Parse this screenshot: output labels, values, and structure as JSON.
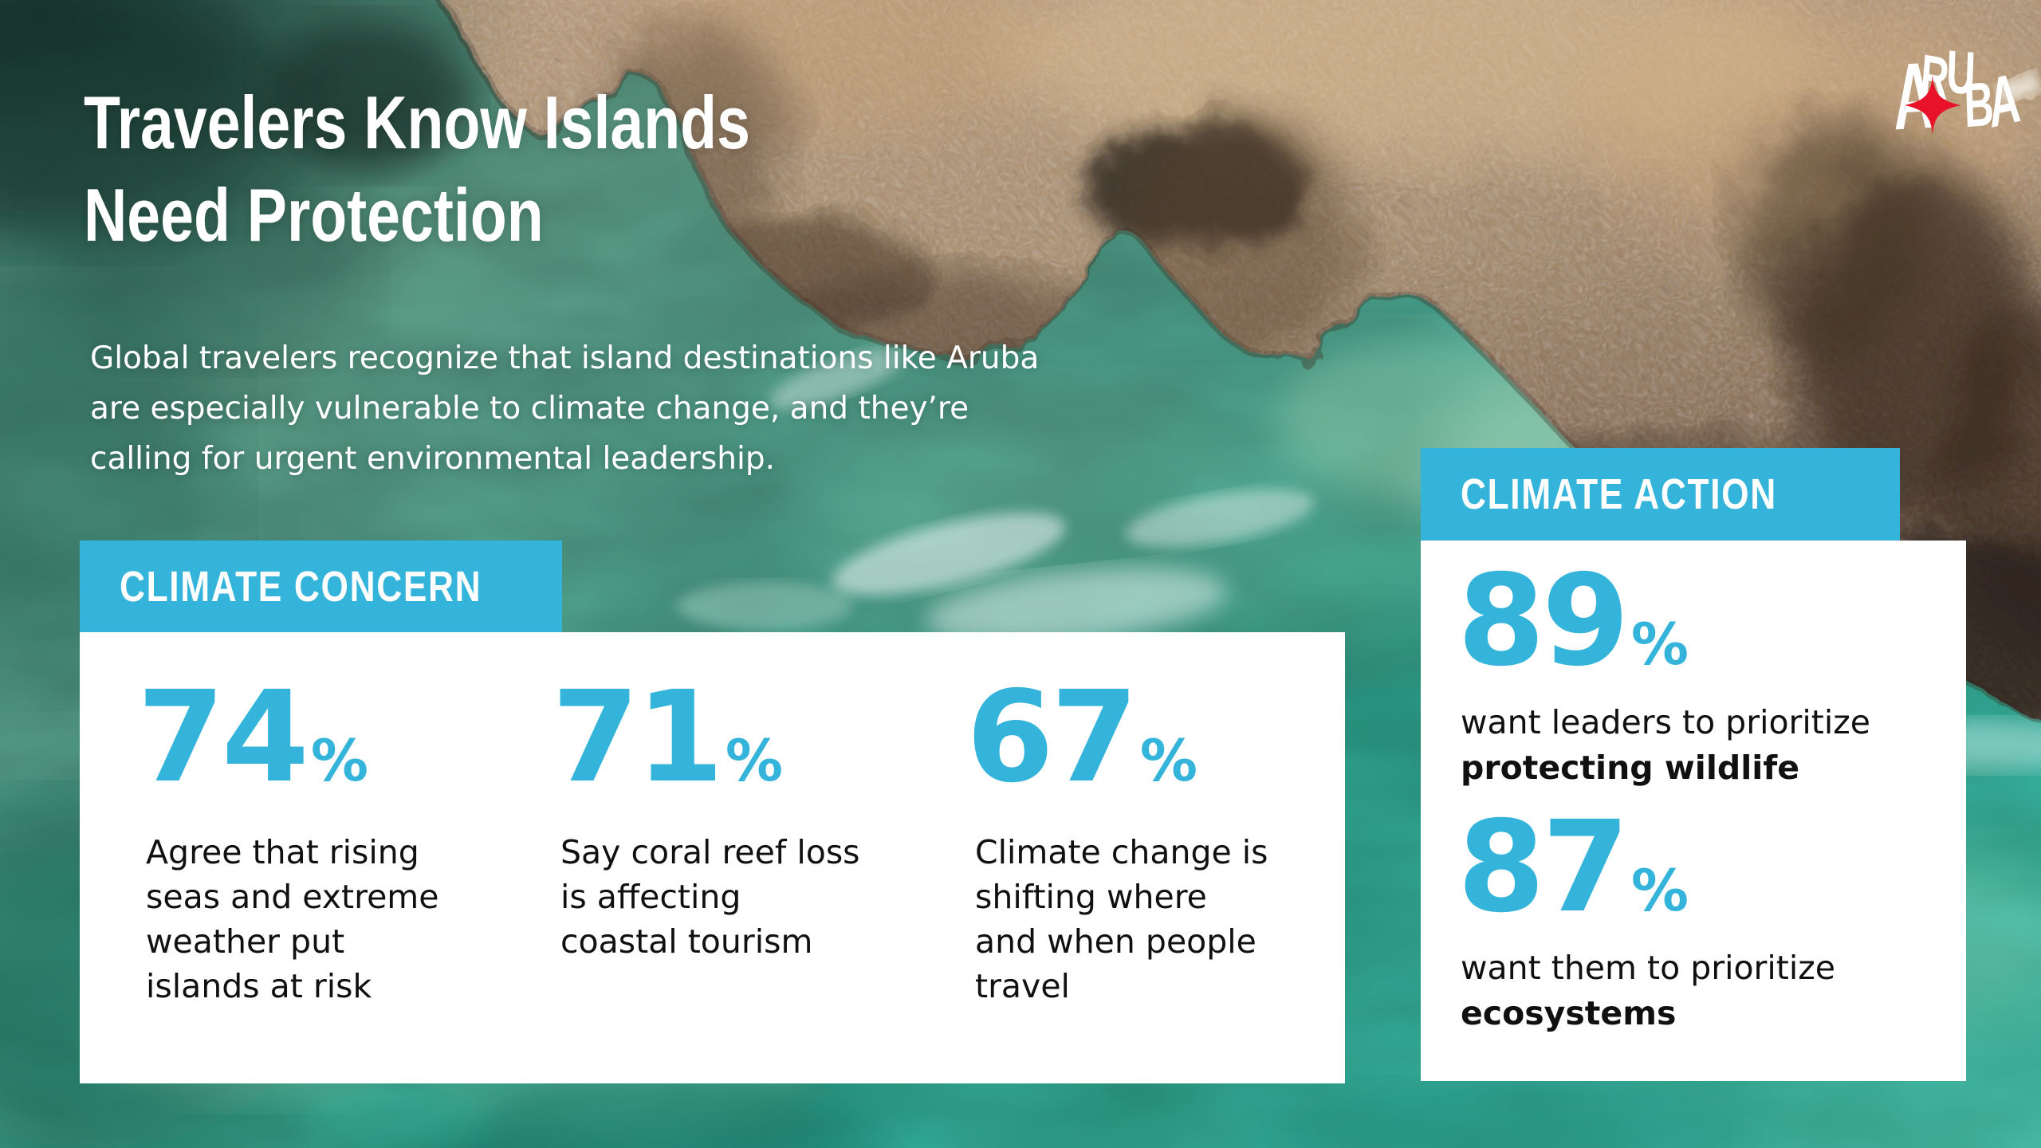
{
  "colors": {
    "accent_blue": "#34b4da",
    "star_red": "#e8132b",
    "panel_white": "#ffffff",
    "text_dark": "#101010"
  },
  "logo": {
    "letters": [
      "A",
      "R",
      "U",
      "B",
      "A"
    ]
  },
  "header": {
    "title_lines": [
      "Travelers Know Islands",
      "Need Protection"
    ],
    "subtitle_lines": [
      "Global travelers recognize that island destinations like Aruba",
      "are especially vulnerable to climate change, and they’re",
      "calling for urgent environmental leadership."
    ]
  },
  "concern": {
    "tab_label": "CLIMATE CONCERN",
    "stats": [
      {
        "value": "74",
        "unit": "%",
        "desc_lines": [
          "Agree that rising",
          "seas and extreme",
          "weather put",
          "islands at risk"
        ]
      },
      {
        "value": "71",
        "unit": "%",
        "desc_lines": [
          "Say coral reef loss",
          "is affecting",
          "coastal tourism"
        ]
      },
      {
        "value": "67",
        "unit": "%",
        "desc_lines": [
          "Climate change is",
          "shifting where",
          "and when people",
          "travel"
        ]
      }
    ]
  },
  "action": {
    "tab_label": "CLIMATE ACTION",
    "stats": [
      {
        "value": "89",
        "unit": "%",
        "line_normal": "want leaders to prioritize",
        "line_bold": "protecting wildlife"
      },
      {
        "value": "87",
        "unit": "%",
        "line_normal": "want them to prioritize",
        "line_bold": "ecosystems"
      }
    ]
  }
}
